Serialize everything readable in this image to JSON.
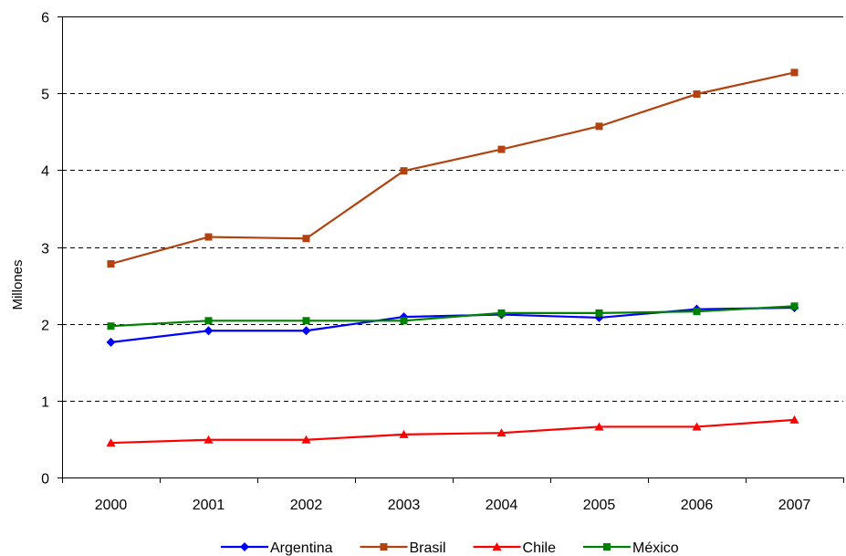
{
  "chart_data": {
    "type": "line",
    "title": "",
    "xlabel": "",
    "ylabel": "Millones",
    "categories": [
      "2000",
      "2001",
      "2002",
      "2003",
      "2004",
      "2005",
      "2006",
      "2007"
    ],
    "ylim": [
      0,
      6
    ],
    "yticks": [
      0,
      1,
      2,
      3,
      4,
      5,
      6
    ],
    "grid": "horizontal dashed",
    "legend_position": "bottom",
    "series": [
      {
        "name": "Argentina",
        "color": "#0000ff",
        "marker": "diamond",
        "values": [
          1.76,
          1.91,
          1.91,
          2.09,
          2.12,
          2.08,
          2.19,
          2.21
        ]
      },
      {
        "name": "Brasil",
        "color": "#b2420f",
        "marker": "square",
        "values": [
          2.78,
          3.13,
          3.11,
          3.99,
          4.27,
          4.57,
          4.99,
          5.27
        ]
      },
      {
        "name": "Chile",
        "color": "#ff0000",
        "marker": "triangle",
        "values": [
          0.45,
          0.49,
          0.49,
          0.56,
          0.58,
          0.66,
          0.66,
          0.75
        ]
      },
      {
        "name": "México",
        "color": "#008000",
        "marker": "square",
        "values": [
          1.97,
          2.04,
          2.04,
          2.04,
          2.14,
          2.14,
          2.16,
          2.23
        ]
      }
    ]
  }
}
